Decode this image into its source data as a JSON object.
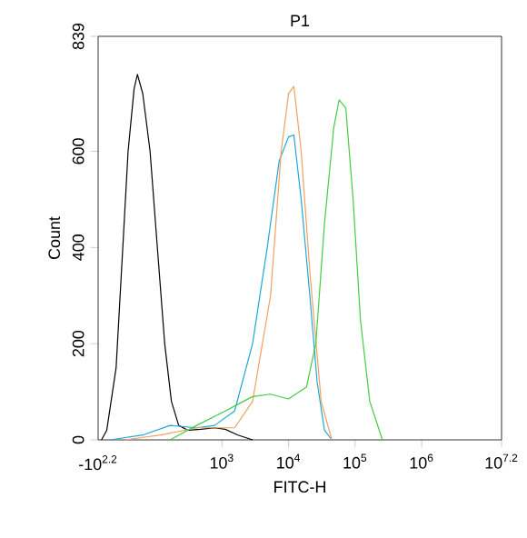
{
  "chart_data": {
    "type": "line",
    "title": "P1",
    "xlabel": "FITC-H",
    "ylabel": "Count",
    "log": "x",
    "xlim": [
      13.8,
      15848932
    ],
    "ylim": [
      0,
      839
    ],
    "xticks": [
      {
        "value": 1000,
        "label": "10$^{3}$"
      },
      {
        "value": 10000,
        "label": "10$^{4}$"
      },
      {
        "value": 100000,
        "label": "10$^{5}$"
      },
      {
        "value": 1000000,
        "label": "10$^{6}$"
      },
      {
        "value": 15848932,
        "label": "10$^{7.2}$"
      }
    ],
    "yticks": [
      0,
      200,
      400,
      600,
      839
    ],
    "annotations": [
      "-10$^{2.2}$"
    ],
    "series": [
      {
        "color": "#000000",
        "x": [
          15.5,
          18.6,
          25.7,
          32.4,
          38.9,
          47.9,
          53.7,
          64.6,
          83.2,
          107,
          138,
          174,
          224,
          309,
          479,
          776,
          1122,
          1738,
          2884
        ],
        "values": [
          0,
          20,
          150,
          400,
          600,
          730,
          760,
          720,
          600,
          400,
          200,
          80,
          30,
          20,
          22,
          25,
          22,
          10,
          0
        ]
      },
      {
        "color": "#1ea8d8",
        "x": [
          20.9,
          64.6,
          166,
          417,
          776,
          1549,
          2884,
          4786,
          7244,
          10000,
          12020,
          15490,
          20890,
          26920,
          34670,
          44670
        ],
        "values": [
          0,
          10,
          30,
          25,
          30,
          60,
          200,
          400,
          580,
          630,
          634,
          500,
          300,
          120,
          20,
          0
        ]
      },
      {
        "color": "#f0a060",
        "x": [
          34.7,
          120,
          417,
          1549,
          2884,
          5370,
          7762,
          10000,
          12020,
          15490,
          20890,
          30900,
          44670
        ],
        "values": [
          0,
          10,
          25,
          25,
          80,
          300,
          600,
          720,
          735,
          600,
          350,
          80,
          0
        ]
      },
      {
        "color": "#44cc44",
        "x": [
          166,
          417,
          1122,
          2884,
          5370,
          10000,
          18620,
          25700,
          34670,
          47860,
          57540,
          72440,
          93330,
          120200,
          166000,
          257000
        ],
        "values": [
          0,
          30,
          60,
          90,
          95,
          85,
          110,
          200,
          450,
          650,
          707,
          690,
          500,
          250,
          80,
          0
        ]
      }
    ]
  }
}
